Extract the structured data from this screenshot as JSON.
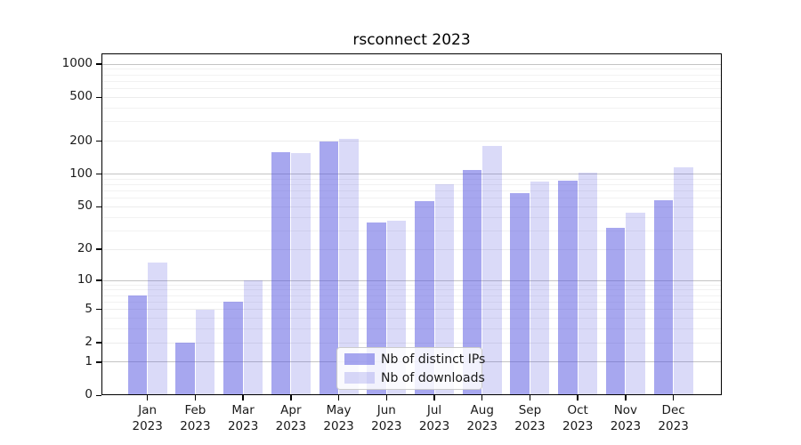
{
  "title": "rsconnect 2023",
  "legend": {
    "items": [
      {
        "label": "Nb of distinct IPs",
        "color": "rgba(80,80,224,0.50)"
      },
      {
        "label": "Nb of downloads",
        "color": "rgba(80,80,224,0.21)"
      }
    ]
  },
  "colors": {
    "bar_distinct_ips": "rgba(80,80,224,0.50)",
    "bar_downloads": "rgba(80,80,224,0.21)",
    "grid_power10": "#c4c4c4",
    "grid_light": "#ececec",
    "grid_minor": "#f2f2f2",
    "axis": "#000000",
    "text": "#1a1a1a"
  },
  "chart_data": {
    "type": "bar",
    "title": "rsconnect 2023",
    "categories": [
      "Jan 2023",
      "Feb 2023",
      "Mar 2023",
      "Apr 2023",
      "May 2023",
      "Jun 2023",
      "Jul 2023",
      "Aug 2023",
      "Sep 2023",
      "Oct 2023",
      "Nov 2023",
      "Dec 2023"
    ],
    "series": [
      {
        "name": "Nb of distinct IPs",
        "values": [
          7,
          2,
          6,
          157,
          200,
          36,
          56,
          110,
          67,
          87,
          32,
          58
        ]
      },
      {
        "name": "Nb of downloads",
        "values": [
          15,
          5,
          10,
          155,
          210,
          37,
          80,
          180,
          85,
          103,
          44,
          116
        ]
      }
    ],
    "xlabel": "",
    "ylabel": "",
    "yscale": "log1p",
    "yticks": [
      0,
      1,
      2,
      5,
      10,
      20,
      50,
      100,
      200,
      500,
      1000
    ],
    "ytick_labels": [
      "0",
      "1",
      "2",
      "5",
      "10",
      "20",
      "50",
      "100",
      "200",
      "500",
      "1000"
    ],
    "minor_yticks": [
      3,
      4,
      6,
      7,
      8,
      9,
      30,
      40,
      60,
      70,
      80,
      90,
      300,
      400,
      600,
      700,
      800,
      900
    ],
    "ylim": [
      0,
      1250
    ],
    "grid": "on",
    "legend_position": "lower center"
  }
}
